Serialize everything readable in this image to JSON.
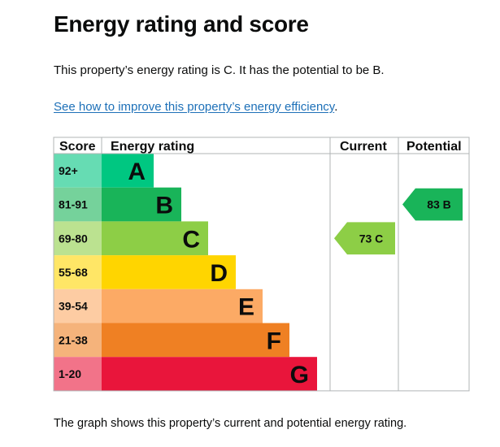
{
  "page": {
    "title": "Energy rating and score",
    "summary": "This property’s energy rating is C. It has the potential to be B.",
    "link_text": "See how to improve this property’s energy efficiency",
    "link_suffix": ".",
    "caption": "The graph shows this property’s current and potential energy rating."
  },
  "chart_data": {
    "type": "bar",
    "columns": {
      "score": "Score",
      "rating": "Energy rating",
      "current": "Current",
      "potential": "Potential"
    },
    "bands": [
      {
        "letter": "A",
        "score": "92+",
        "color": "#00c781",
        "score_bg": "#66dcb3"
      },
      {
        "letter": "B",
        "score": "81-91",
        "color": "#19b459",
        "score_bg": "#75d29b"
      },
      {
        "letter": "C",
        "score": "69-80",
        "color": "#8dce46",
        "score_bg": "#bbe290"
      },
      {
        "letter": "D",
        "score": "55-68",
        "color": "#ffd500",
        "score_bg": "#ffe666"
      },
      {
        "letter": "E",
        "score": "39-54",
        "color": "#fcaa65",
        "score_bg": "#fdcca3"
      },
      {
        "letter": "F",
        "score": "21-38",
        "color": "#ef8023",
        "score_bg": "#f5b37b"
      },
      {
        "letter": "G",
        "score": "1-20",
        "color": "#e9153b",
        "score_bg": "#f27389"
      }
    ],
    "current": {
      "score": 73,
      "band": "C",
      "label": "73 C",
      "color": "#8dce46"
    },
    "potential": {
      "score": 83,
      "band": "B",
      "label": "83 B",
      "color": "#19b459"
    }
  }
}
